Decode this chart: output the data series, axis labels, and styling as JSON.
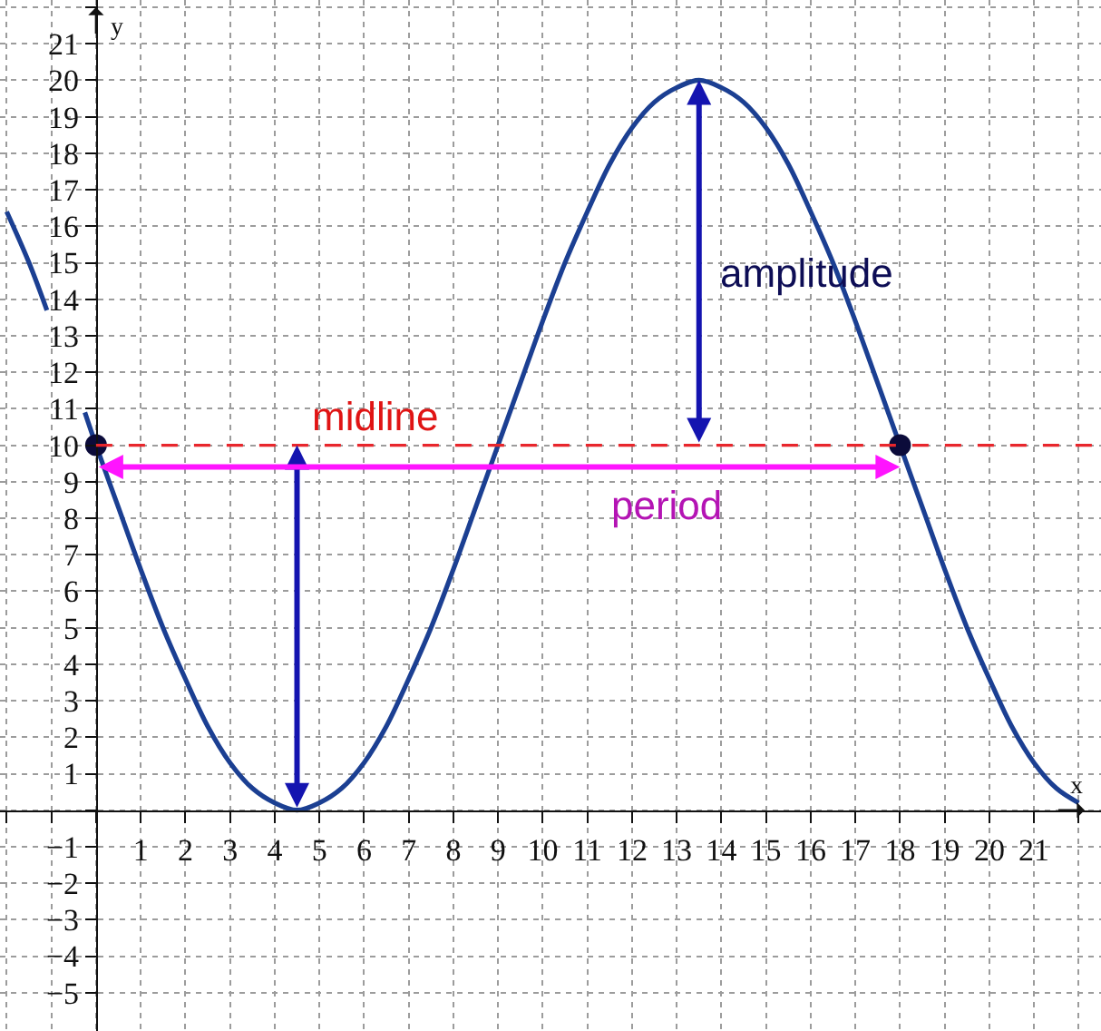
{
  "chart_data": {
    "type": "line",
    "xlabel": "x",
    "ylabel": "y",
    "annotations": [
      "amplitude",
      {
        "text": "midline",
        "x": 4.5,
        "y": 10
      },
      "period"
    ],
    "series": [
      {
        "color": "#1b3f92",
        "x": [
          -2,
          -1.5,
          -1.1,
          -0.7,
          -0.25,
          0,
          0.5,
          1,
          1.5,
          2,
          2.5,
          3,
          3.5,
          4,
          4.5,
          5,
          5.5,
          6,
          6.5,
          7,
          7.5,
          8,
          8.5,
          9,
          9.5,
          10,
          10.5,
          11,
          11.5,
          12,
          12.5,
          13,
          13.5,
          14,
          14.5,
          15,
          15.5,
          16,
          16.5,
          17,
          17.5,
          18,
          18.5,
          19,
          19.5,
          20,
          20.5,
          21,
          21.5,
          22
        ],
        "values": [
          16.4,
          15.0,
          13.7,
          null,
          10.9,
          10,
          8.3,
          6.6,
          5.0,
          3.6,
          2.3,
          1.3,
          0.6,
          0.2,
          0,
          0.2,
          0.6,
          1.3,
          2.3,
          3.6,
          5.0,
          6.6,
          8.3,
          10,
          11.7,
          13.4,
          15.0,
          16.4,
          17.7,
          18.7,
          19.4,
          19.8,
          20,
          19.8,
          19.4,
          18.7,
          17.7,
          16.4,
          15.0,
          13.4,
          11.7,
          10,
          8.3,
          6.6,
          5.0,
          3.6,
          2.3,
          1.3,
          0.6,
          0.2
        ]
      },
      {
        "type": "scatter",
        "color": "#0b0b3a",
        "marker": "circle",
        "x": [
          0,
          18
        ],
        "values": [
          10,
          10
        ]
      }
    ],
    "xlim": [
      -2.15,
      22.5
    ],
    "ylim": [
      -6.05,
      22.2
    ],
    "xticks": [
      {
        "value": -2,
        "label": null
      },
      {
        "value": -1,
        "label": null
      },
      {
        "value": 0,
        "label": null
      },
      1,
      2,
      3,
      4,
      5,
      6,
      7,
      8,
      9,
      10,
      11,
      12,
      13,
      14,
      15,
      16,
      17,
      18,
      19,
      20,
      21,
      {
        "value": 22,
        "label": null
      }
    ],
    "yticks": [
      -5,
      -4,
      -3,
      -2,
      -1,
      {
        "value": 0,
        "label": null
      },
      1,
      2,
      3,
      4,
      5,
      6,
      7,
      8,
      9,
      10,
      11,
      12,
      13,
      14,
      15,
      16,
      17,
      18,
      19,
      20,
      21,
      {
        "value": 22,
        "label": null
      }
    ],
    "ref_lines": [
      {
        "axis": "y",
        "value": 10,
        "color": "#e8262c",
        "line_style": "dashed"
      }
    ],
    "grid": true
  }
}
